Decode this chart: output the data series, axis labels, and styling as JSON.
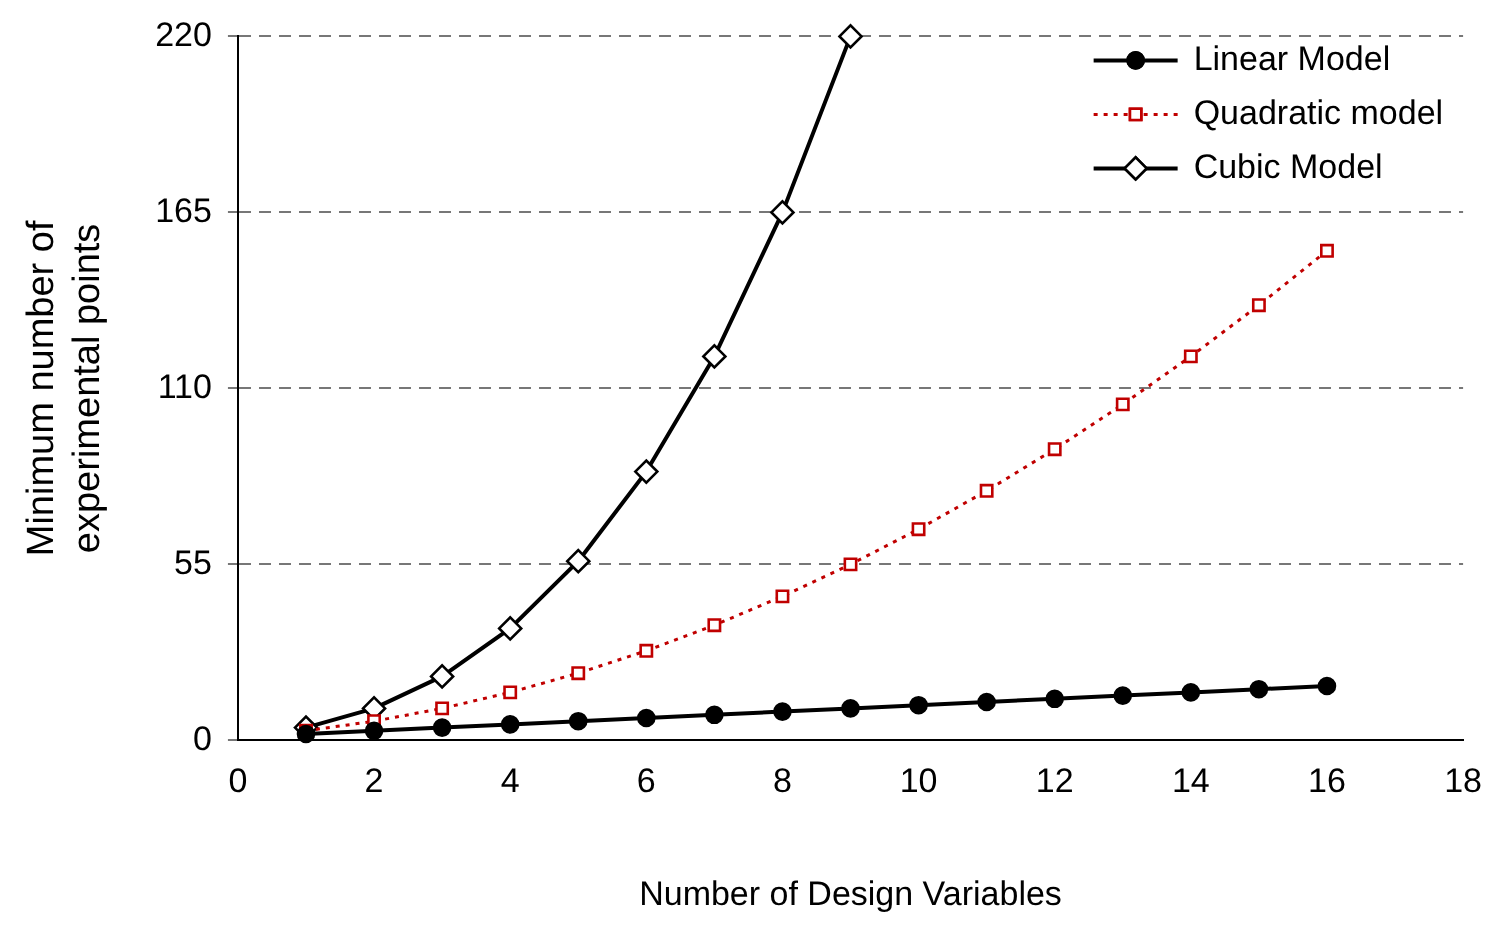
{
  "chart_data": {
    "type": "line",
    "xlabel": "Number of Design Variables",
    "ylabel": "Minimum number of experimental points",
    "xlim": [
      0,
      18
    ],
    "xticks": [
      0,
      2,
      4,
      6,
      8,
      10,
      12,
      14,
      16,
      18
    ],
    "ylim": [
      0,
      220
    ],
    "yticks": [
      0,
      55,
      110,
      165,
      220
    ],
    "grid": "y",
    "legend": "top right",
    "series": [
      {
        "name": "Linear Model",
        "color": "#000000",
        "marker": "circle",
        "line_style": "solid",
        "x": [
          1,
          2,
          3,
          4,
          5,
          6,
          7,
          8,
          9,
          10,
          11,
          12,
          13,
          14,
          15,
          16
        ],
        "values": [
          2,
          3,
          4,
          5,
          6,
          7,
          8,
          9,
          10,
          11,
          12,
          13,
          14,
          15,
          16,
          17
        ]
      },
      {
        "name": "Quadratic model",
        "color": "#c00000",
        "marker": "square",
        "line_style": "dotted",
        "x": [
          1,
          2,
          3,
          4,
          5,
          6,
          7,
          8,
          9,
          10,
          11,
          12,
          13,
          14,
          15,
          16
        ],
        "values": [
          3,
          6,
          10,
          15,
          21,
          28,
          36,
          45,
          55,
          66,
          78,
          91,
          105,
          120,
          136,
          153
        ]
      },
      {
        "name": "Cubic Model",
        "color": "#000000",
        "marker": "diamond",
        "line_style": "solid",
        "x": [
          1,
          2,
          3,
          4,
          5,
          6,
          7,
          8,
          9
        ],
        "values": [
          4,
          10,
          20,
          35,
          56,
          84,
          120,
          165,
          220
        ]
      }
    ]
  }
}
